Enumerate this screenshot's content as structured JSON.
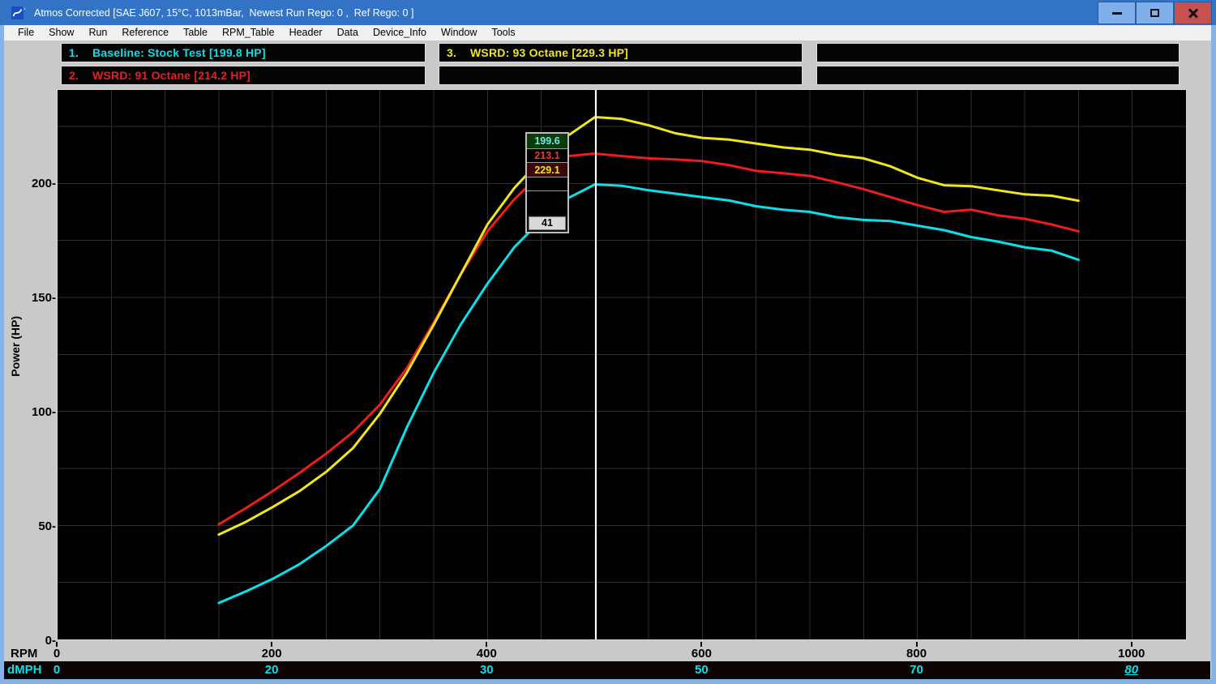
{
  "window": {
    "title": "Atmos Corrected [SAE J607, 15°C, 1013mBar,  Newest Run Rego: 0 ,  Ref Rego: 0 ]",
    "controls": [
      "minimize",
      "maximize",
      "close"
    ]
  },
  "menu": {
    "items": [
      "File",
      "Show",
      "Run",
      "Reference",
      "Table",
      "RPM_Table",
      "Header",
      "Data",
      "Device_Info",
      "Window",
      "Tools"
    ]
  },
  "colors": {
    "titlebar": "#3273c5",
    "window_border": "#85b2e7",
    "panel_gray": "#c9c9c9",
    "plot_bg": "#000000",
    "gridline": "#2e2e2e",
    "cursor_line": "#ffffff",
    "run1_cyan": "#0ae0ea",
    "run2_red": "#ee1c1c",
    "run3_yellow": "#f0e71a"
  },
  "legend": {
    "columns": [
      {
        "rows": [
          {
            "number": "1.",
            "text": "Baseline: Stock Test [199.8 HP]",
            "color": "#0ae0ea"
          },
          {
            "number": "2.",
            "text": "WSRD: 91 Octane [214.2 HP]",
            "color": "#ee1c1c"
          }
        ]
      },
      {
        "rows": [
          {
            "number": "3.",
            "text": "WSRD: 93 Octane [229.3 HP]",
            "color": "#f0e71a"
          },
          {
            "number": "",
            "text": "",
            "color": ""
          }
        ]
      },
      {
        "rows": [
          {
            "number": "",
            "text": "",
            "color": ""
          },
          {
            "number": "",
            "text": "",
            "color": ""
          }
        ]
      }
    ]
  },
  "cursor": {
    "rpm": 501,
    "cells": [
      {
        "value": "199.6",
        "fg": "#6ceaea",
        "bg": "#0b3a0b",
        "height": 18
      },
      {
        "value": "213.1",
        "fg": "#f23333",
        "bg": "#000000",
        "height": 17
      },
      {
        "value": "229.1",
        "fg": "#f2e716",
        "bg": "#3c0707",
        "height": 18
      },
      {
        "value": "",
        "fg": "#ffffff",
        "bg": "#000000",
        "height": 17
      },
      {
        "value": "",
        "fg": "#ffffff",
        "bg": "#000000",
        "height": 30
      }
    ],
    "speed": "41"
  },
  "chart_data": {
    "type": "line",
    "xlabel": "RPM",
    "ylabel": "Power (HP)",
    "xlim": [
      0,
      1050
    ],
    "ylim": [
      0,
      241
    ],
    "grid": true,
    "grid_step_x": 50,
    "grid_step_y": 25,
    "cursor_rpm": 501,
    "y_ticks": [
      {
        "v": 0,
        "label": "0-"
      },
      {
        "v": 50,
        "label": "50-"
      },
      {
        "v": 100,
        "label": "100-"
      },
      {
        "v": 150,
        "label": "150-"
      },
      {
        "v": 200,
        "label": "200-"
      }
    ],
    "x_ticks": [
      {
        "v": 0,
        "label": "0"
      },
      {
        "v": 200,
        "label": "200"
      },
      {
        "v": 400,
        "label": "400"
      },
      {
        "v": 600,
        "label": "600"
      },
      {
        "v": 800,
        "label": "800"
      },
      {
        "v": 1000,
        "label": "1000"
      }
    ],
    "dmph_axis": {
      "label": "dMPH",
      "color": "#0ae0ea",
      "ticks": [
        {
          "v": 0,
          "label": "0",
          "underline": false
        },
        {
          "v": 200,
          "label": "20",
          "underline": false
        },
        {
          "v": 400,
          "label": "30",
          "underline": false
        },
        {
          "v": 600,
          "label": "50",
          "underline": false
        },
        {
          "v": 800,
          "label": "70",
          "underline": false
        },
        {
          "v": 1000,
          "label": "80",
          "underline": true
        }
      ]
    },
    "x": [
      150,
      175,
      200,
      225,
      250,
      275,
      300,
      325,
      350,
      375,
      400,
      425,
      450,
      475,
      500,
      525,
      550,
      575,
      600,
      625,
      650,
      675,
      700,
      725,
      750,
      775,
      800,
      825,
      850,
      875,
      900,
      925,
      950
    ],
    "series": [
      {
        "name": "Baseline: Stock Test",
        "max_hp": 199.8,
        "color": "#0ae0ea",
        "values": [
          16,
          21,
          26.5,
          33,
          41,
          50,
          66,
          93,
          117,
          138,
          156,
          172,
          184,
          193.5,
          199.6,
          199,
          197,
          195.5,
          194,
          192.5,
          190,
          188.5,
          187.5,
          185.2,
          184,
          183.5,
          181.5,
          179.5,
          176.5,
          174.5,
          172,
          170.5,
          166.5
        ]
      },
      {
        "name": "WSRD: 91 Octane",
        "max_hp": 214.2,
        "color": "#ee1c1c",
        "values": [
          50.5,
          57.5,
          65,
          73,
          81.5,
          91,
          103,
          119,
          139,
          160,
          179,
          193,
          204.5,
          212,
          213.1,
          212,
          211,
          210.5,
          209.8,
          208,
          205.5,
          204.5,
          203.3,
          200.5,
          197.5,
          194,
          190.5,
          187.5,
          188.5,
          186,
          184.5,
          182,
          179
        ]
      },
      {
        "name": "WSRD: 93 Octane",
        "max_hp": 229.3,
        "color": "#f0e71a",
        "values": [
          46,
          51.5,
          58,
          65,
          73.5,
          84,
          99,
          117,
          138,
          160,
          182,
          198,
          210.5,
          221,
          229.1,
          228.3,
          225.5,
          222,
          220,
          219.2,
          217.5,
          215.8,
          214.8,
          212.5,
          211,
          207.5,
          202.5,
          199.2,
          198.8,
          197,
          195.2,
          194.6,
          192.4
        ]
      }
    ]
  }
}
